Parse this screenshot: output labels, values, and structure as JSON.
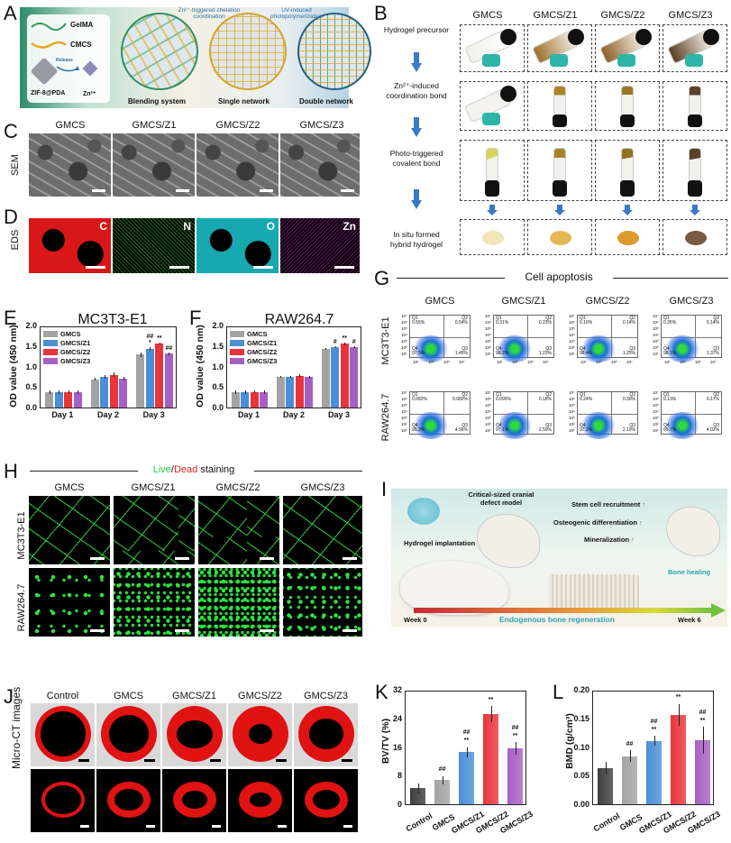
{
  "figure": {
    "panels": {
      "A": {
        "letter": "A",
        "legend": [
          "GelMA",
          "CMCS",
          "ZIF-8@PDA",
          "Zn²⁺"
        ],
        "release_label": "Release",
        "stages": [
          "Blending system",
          "Single network",
          "Double network"
        ],
        "arrows": [
          "Zn²⁺-triggered chelation coordination",
          "UV-induced photopolymerization"
        ]
      },
      "B": {
        "letter": "B",
        "columns": [
          "GMCS",
          "GMCS/Z1",
          "GMCS/Z2",
          "GMCS/Z3"
        ],
        "rows": [
          {
            "line1": "Hydrogel precursor",
            "line2": ""
          },
          {
            "line1": "Zn²⁺-induced",
            "line2": "coordination bond"
          },
          {
            "line1": "Photo-triggered",
            "line2": "covalent bond"
          },
          {
            "line1": "In situ formed",
            "line2": "hybrid hydrogel"
          }
        ],
        "hydrogel_colors": [
          "#f2e6b8",
          "#e6b855",
          "#dc9a2c",
          "#7a5a40"
        ]
      },
      "C": {
        "letter": "C",
        "row_label": "SEM",
        "columns": [
          "GMCS",
          "GMCS/Z1",
          "GMCS/Z2",
          "GMCS/Z3"
        ]
      },
      "D": {
        "letter": "D",
        "row_label": "EDS",
        "elements": [
          {
            "symbol": "C",
            "color": "#e41a1a"
          },
          {
            "symbol": "N",
            "color": "#2fb62f"
          },
          {
            "symbol": "O",
            "color": "#1ec8d0"
          },
          {
            "symbol": "Zn",
            "color": "#b11fb4"
          }
        ]
      },
      "E": {
        "letter": "E"
      },
      "F": {
        "letter": "F"
      },
      "G": {
        "letter": "G",
        "title": "Cell apoptosis",
        "columns": [
          "GMCS",
          "GMCS/Z1",
          "GMCS/Z2",
          "GMCS/Z3"
        ],
        "rows": [
          "MC3T3-E1",
          "RAW264.7"
        ],
        "quadrant_labels": [
          "Q1",
          "Q2",
          "Q3",
          "Q4"
        ],
        "axis_ticks_y": [
          "10⁷",
          "10⁶",
          "10⁵",
          "10⁴",
          "10³",
          "10²",
          "10¹"
        ],
        "axis_ticks_x": [
          "10¹",
          "10³",
          "10⁵",
          "10⁷"
        ],
        "values": [
          [
            {
              "Q1": "0.55%",
              "Q2": "0.54%",
              "Q3": "1.45%",
              "Q4": "97.5%"
            },
            {
              "Q1": "0.31%",
              "Q2": "0.23%",
              "Q3": "1.23%",
              "Q4": "98.2%"
            },
            {
              "Q1": "0.16%",
              "Q2": "0.14%",
              "Q3": "1.25%",
              "Q4": "98.4%"
            },
            {
              "Q1": "0.35%",
              "Q2": "0.14%",
              "Q3": "1.37%",
              "Q4": "98.1%"
            }
          ],
          [
            {
              "Q1": "0.082%",
              "Q2": "0.082%",
              "Q3": "4.56%",
              "Q4": "95.3%"
            },
            {
              "Q1": "0.095%",
              "Q2": "0.18%",
              "Q3": "2.59%",
              "Q4": "97.1%"
            },
            {
              "Q1": "0.24%",
              "Q2": "0.30%",
              "Q3": "2.19%",
              "Q4": "97.3%"
            },
            {
              "Q1": "0.13%",
              "Q2": "0.17%",
              "Q3": "4.02%",
              "Q4": "95.7%"
            }
          ]
        ]
      },
      "H": {
        "letter": "H",
        "title_live": "Live",
        "title_sep": "/",
        "title_dead": "Dead",
        "title_rest": " staining",
        "columns": [
          "GMCS",
          "GMCS/Z1",
          "GMCS/Z2",
          "GMCS/Z3"
        ],
        "rows": [
          "MC3T3-E1",
          "RAW264.7"
        ]
      },
      "I": {
        "letter": "I",
        "labels": {
          "model": "Critical-sized cranial defect model",
          "implant": "Hydrogel implantation",
          "effects": [
            "Stem cell recruitment",
            "Osteogenic differentiation",
            "Mineralization"
          ],
          "healing": "Bone healing",
          "timeline": "Endogenous bone regeneration",
          "start": "Week 0",
          "end": "Week 6"
        },
        "up_arrow": "↑"
      },
      "J": {
        "letter": "J",
        "row_label": "Micro-CT images",
        "columns": [
          "Control",
          "GMCS",
          "GMCS/Z1",
          "GMCS/Z2",
          "GMCS/Z3"
        ]
      },
      "K": {
        "letter": "K"
      },
      "L": {
        "letter": "L"
      }
    }
  },
  "colors": {
    "GMCS": "#a3a3a3",
    "GMCS/Z1": "#4a8fd6",
    "GMCS/Z2": "#e8353a",
    "GMCS/Z3": "#a660c4",
    "Control": "#3d3d3d"
  },
  "chart_data": [
    {
      "id": "E",
      "type": "bar",
      "title": "MC3T3-E1",
      "xlabel": "",
      "ylabel": "OD value (450 nm)",
      "ylim": [
        0,
        2.0
      ],
      "yticks": [
        "0.0",
        "0.5",
        "1.0",
        "1.5",
        "2.0"
      ],
      "categories": [
        "Day 1",
        "Day 2",
        "Day 3"
      ],
      "legend_position": "upper left",
      "series": [
        {
          "name": "GMCS",
          "values": [
            0.37,
            0.69,
            1.29
          ],
          "errors": [
            0.04,
            0.04,
            0.05
          ],
          "sig": [
            "",
            "",
            ""
          ]
        },
        {
          "name": "GMCS/Z1",
          "values": [
            0.38,
            0.75,
            1.43
          ],
          "errors": [
            0.04,
            0.04,
            0.05
          ],
          "sig": [
            "",
            "",
            "##\n*"
          ]
        },
        {
          "name": "GMCS/Z2",
          "values": [
            0.37,
            0.8,
            1.56
          ],
          "errors": [
            0.04,
            0.05,
            0.03
          ],
          "sig": [
            "",
            "",
            "**"
          ]
        },
        {
          "name": "GMCS/Z3",
          "values": [
            0.38,
            0.71,
            1.31
          ],
          "errors": [
            0.04,
            0.04,
            0.04
          ],
          "sig": [
            "",
            "",
            "##"
          ]
        }
      ]
    },
    {
      "id": "F",
      "type": "bar",
      "title": "RAW264.7",
      "xlabel": "",
      "ylabel": "OD value (450 nm)",
      "ylim": [
        0,
        2.0
      ],
      "yticks": [
        "0.0",
        "0.5",
        "1.0",
        "1.5",
        "2.0"
      ],
      "categories": [
        "Day 1",
        "Day 2",
        "Day 3"
      ],
      "legend_position": "upper left",
      "series": [
        {
          "name": "GMCS",
          "values": [
            0.38,
            0.74,
            1.43
          ],
          "errors": [
            0.04,
            0.02,
            0.03
          ],
          "sig": [
            "",
            "",
            ""
          ]
        },
        {
          "name": "GMCS/Z1",
          "values": [
            0.38,
            0.75,
            1.47
          ],
          "errors": [
            0.04,
            0.03,
            0.03
          ],
          "sig": [
            "",
            "",
            "#"
          ]
        },
        {
          "name": "GMCS/Z2",
          "values": [
            0.38,
            0.78,
            1.55
          ],
          "errors": [
            0.03,
            0.04,
            0.03
          ],
          "sig": [
            "",
            "",
            "**"
          ]
        },
        {
          "name": "GMCS/Z3",
          "values": [
            0.37,
            0.74,
            1.47
          ],
          "errors": [
            0.04,
            0.03,
            0.03
          ],
          "sig": [
            "",
            "",
            "#"
          ]
        }
      ]
    },
    {
      "id": "K",
      "type": "bar",
      "title": "",
      "xlabel": "",
      "ylabel": "BV/TV (%)",
      "ylim": [
        0,
        32
      ],
      "yticks": [
        "0",
        "8",
        "16",
        "24",
        "32"
      ],
      "categories": [
        "Control",
        "GMCS",
        "GMCS/Z1",
        "GMCS/Z2",
        "GMCS/Z3"
      ],
      "values": [
        4.5,
        6.7,
        14.6,
        25.2,
        15.6
      ],
      "errors": [
        1.4,
        1.1,
        1.4,
        2.2,
        1.7
      ],
      "sig": [
        "",
        "##",
        "##\n**",
        "**",
        "##\n**"
      ]
    },
    {
      "id": "L",
      "type": "bar",
      "title": "",
      "xlabel": "",
      "ylabel": "BMD (g/cm³)",
      "ylim": [
        0,
        0.2
      ],
      "yticks": [
        "0.00",
        "0.05",
        "0.10",
        "0.15",
        "0.20"
      ],
      "categories": [
        "Control",
        "GMCS",
        "GMCS/Z1",
        "GMCS/Z2",
        "GMCS/Z3"
      ],
      "values": [
        0.063,
        0.084,
        0.111,
        0.156,
        0.112
      ],
      "errors": [
        0.011,
        0.01,
        0.008,
        0.019,
        0.023
      ],
      "sig": [
        "",
        "##",
        "##\n**",
        "**",
        "##\n**"
      ]
    }
  ]
}
